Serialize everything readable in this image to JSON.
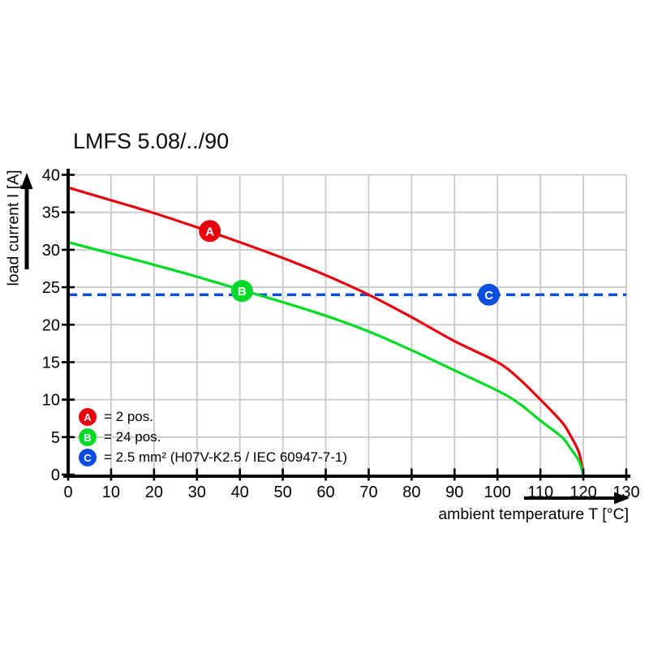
{
  "chart_data": {
    "type": "line",
    "title": "LMFS 5.08/../90",
    "xlabel": "ambient temperature T [°C]",
    "ylabel": "load current I [A]",
    "xlim": [
      0,
      130
    ],
    "ylim": [
      0,
      40
    ],
    "x_ticks": [
      0,
      10,
      20,
      30,
      40,
      50,
      60,
      70,
      80,
      90,
      100,
      110,
      120,
      130
    ],
    "y_ticks": [
      0,
      5,
      10,
      15,
      20,
      25,
      30,
      35,
      40
    ],
    "grid": true,
    "grid_color": "#c9c9c9",
    "axis_color": "#000000",
    "legend_position": "inside-bottom-left",
    "series": [
      {
        "name": "A",
        "legend_label": "= 2 pos.",
        "type": "curve",
        "color": "#e8000f",
        "points": [
          [
            0,
            38.3
          ],
          [
            10,
            36.6
          ],
          [
            20,
            34.9
          ],
          [
            30,
            33.0
          ],
          [
            40,
            31.0
          ],
          [
            50,
            28.9
          ],
          [
            60,
            26.6
          ],
          [
            70,
            24.0
          ],
          [
            80,
            21.0
          ],
          [
            90,
            17.8
          ],
          [
            100,
            15.0
          ],
          [
            105,
            12.8
          ],
          [
            110,
            10.0
          ],
          [
            115,
            7.0
          ],
          [
            117,
            5.2
          ],
          [
            119,
            2.9
          ],
          [
            120,
            0
          ]
        ],
        "marker": {
          "label": "A",
          "x": 33,
          "y": 32.5
        }
      },
      {
        "name": "B",
        "legend_label": "= 24 pos.",
        "type": "curve",
        "color": "#00d926",
        "points": [
          [
            0,
            31.0
          ],
          [
            10,
            29.5
          ],
          [
            20,
            28.0
          ],
          [
            30,
            26.4
          ],
          [
            40,
            24.7
          ],
          [
            50,
            23.0
          ],
          [
            60,
            21.2
          ],
          [
            70,
            19.1
          ],
          [
            80,
            16.6
          ],
          [
            90,
            13.9
          ],
          [
            100,
            11.2
          ],
          [
            105,
            9.5
          ],
          [
            110,
            7.2
          ],
          [
            115,
            5.0
          ],
          [
            117,
            3.5
          ],
          [
            119,
            1.8
          ],
          [
            120,
            0
          ]
        ],
        "marker": {
          "label": "B",
          "x": 40.5,
          "y": 24.5
        }
      },
      {
        "name": "C",
        "legend_label": "= 2.5 mm² (H07V-K2.5 / IEC 60947-7-1)",
        "type": "hline-dashed",
        "color": "#0a4fe0",
        "value": 24,
        "marker": {
          "label": "C",
          "x": 98,
          "y": 24
        }
      }
    ]
  }
}
